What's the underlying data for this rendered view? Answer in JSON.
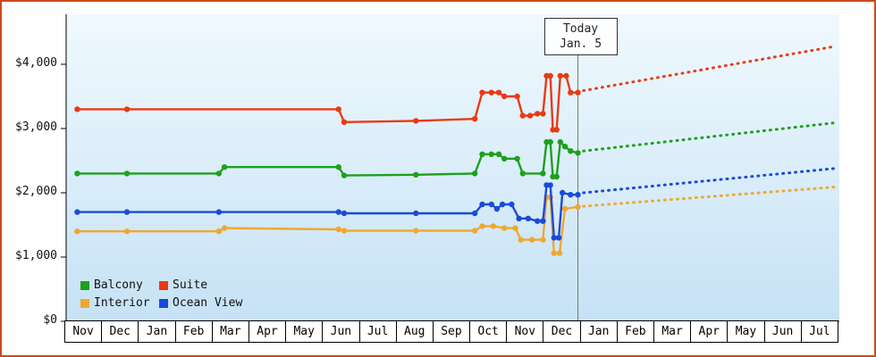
{
  "chart_data": {
    "type": "line",
    "title": "",
    "grid": false,
    "ylim": [
      0,
      4800
    ],
    "y_axis": {
      "tick_values": [
        0,
        1000,
        2000,
        3000,
        4000
      ],
      "tick_labels": [
        "$0",
        "$1,000",
        "$2,000",
        "$3,000",
        "$4,000"
      ]
    },
    "x_axis": {
      "categories": [
        "Nov",
        "Dec",
        "Jan",
        "Feb",
        "Mar",
        "Apr",
        "May",
        "Jun",
        "Jul",
        "Aug",
        "Sep",
        "Oct",
        "Nov",
        "Dec",
        "Jan",
        "Feb",
        "Mar",
        "Apr",
        "May",
        "Jun",
        "Jul"
      ]
    },
    "today_marker": {
      "line1": "Today",
      "line2": "Jan. 5",
      "month_position": 13.9
    },
    "series": [
      {
        "name": "Balcony",
        "color": "#1ea01e",
        "history": [
          [
            0.3,
            2300
          ],
          [
            1.65,
            2300
          ],
          [
            4.15,
            2300
          ],
          [
            4.3,
            2400
          ],
          [
            7.4,
            2400
          ],
          [
            7.55,
            2270
          ],
          [
            9.5,
            2280
          ],
          [
            11.1,
            2300
          ],
          [
            11.3,
            2600
          ],
          [
            11.55,
            2600
          ],
          [
            11.75,
            2600
          ],
          [
            11.9,
            2530
          ],
          [
            12.25,
            2530
          ],
          [
            12.4,
            2300
          ],
          [
            12.95,
            2300
          ],
          [
            13.05,
            2790
          ],
          [
            13.15,
            2790
          ],
          [
            13.22,
            2250
          ],
          [
            13.32,
            2250
          ],
          [
            13.42,
            2790
          ],
          [
            13.55,
            2720
          ],
          [
            13.7,
            2650
          ],
          [
            13.9,
            2620
          ]
        ],
        "forecast": [
          [
            14.05,
            2650
          ],
          [
            20.9,
            3090
          ]
        ]
      },
      {
        "name": "Suite",
        "color": "#e93a15",
        "history": [
          [
            0.3,
            3300
          ],
          [
            1.65,
            3300
          ],
          [
            7.4,
            3300
          ],
          [
            7.55,
            3100
          ],
          [
            9.5,
            3120
          ],
          [
            11.1,
            3150
          ],
          [
            11.3,
            3560
          ],
          [
            11.55,
            3560
          ],
          [
            11.75,
            3560
          ],
          [
            11.9,
            3500
          ],
          [
            12.25,
            3500
          ],
          [
            12.4,
            3200
          ],
          [
            12.6,
            3200
          ],
          [
            12.8,
            3230
          ],
          [
            12.95,
            3230
          ],
          [
            13.05,
            3820
          ],
          [
            13.15,
            3820
          ],
          [
            13.22,
            2980
          ],
          [
            13.32,
            2980
          ],
          [
            13.42,
            3820
          ],
          [
            13.58,
            3820
          ],
          [
            13.7,
            3560
          ],
          [
            13.9,
            3560
          ]
        ],
        "forecast": [
          [
            14.05,
            3590
          ],
          [
            20.9,
            4280
          ]
        ]
      },
      {
        "name": "Interior",
        "color": "#efa830",
        "history": [
          [
            0.3,
            1400
          ],
          [
            1.65,
            1400
          ],
          [
            4.15,
            1400
          ],
          [
            4.3,
            1450
          ],
          [
            7.4,
            1430
          ],
          [
            7.55,
            1410
          ],
          [
            9.5,
            1410
          ],
          [
            11.1,
            1410
          ],
          [
            11.3,
            1480
          ],
          [
            11.6,
            1480
          ],
          [
            11.9,
            1450
          ],
          [
            12.2,
            1450
          ],
          [
            12.35,
            1270
          ],
          [
            12.65,
            1270
          ],
          [
            12.95,
            1270
          ],
          [
            13.05,
            1930
          ],
          [
            13.15,
            1930
          ],
          [
            13.25,
            1060
          ],
          [
            13.4,
            1060
          ],
          [
            13.55,
            1750
          ],
          [
            13.9,
            1780
          ]
        ],
        "forecast": [
          [
            14.05,
            1790
          ],
          [
            20.9,
            2090
          ]
        ]
      },
      {
        "name": "Ocean View",
        "color": "#1a4bd8",
        "history": [
          [
            0.3,
            1700
          ],
          [
            1.65,
            1700
          ],
          [
            4.15,
            1700
          ],
          [
            7.4,
            1700
          ],
          [
            7.55,
            1680
          ],
          [
            9.5,
            1680
          ],
          [
            11.1,
            1680
          ],
          [
            11.3,
            1820
          ],
          [
            11.55,
            1820
          ],
          [
            11.7,
            1750
          ],
          [
            11.85,
            1820
          ],
          [
            12.1,
            1820
          ],
          [
            12.3,
            1600
          ],
          [
            12.55,
            1600
          ],
          [
            12.8,
            1560
          ],
          [
            12.95,
            1560
          ],
          [
            13.05,
            2120
          ],
          [
            13.15,
            2120
          ],
          [
            13.25,
            1300
          ],
          [
            13.38,
            1300
          ],
          [
            13.48,
            2000
          ],
          [
            13.7,
            1970
          ],
          [
            13.9,
            1970
          ]
        ],
        "forecast": [
          [
            14.05,
            2000
          ],
          [
            20.9,
            2380
          ]
        ]
      }
    ],
    "z_order": [
      2,
      3,
      0,
      1
    ],
    "colors": {
      "frame_border": "#cc4a1a",
      "plot_bg_top": "#f0f9fe",
      "plot_bg_bottom": "#c6e2f5",
      "axis": "#000000",
      "today_line": "#777777",
      "text": "#111111"
    },
    "legend_position": "bottom-left-inside"
  }
}
